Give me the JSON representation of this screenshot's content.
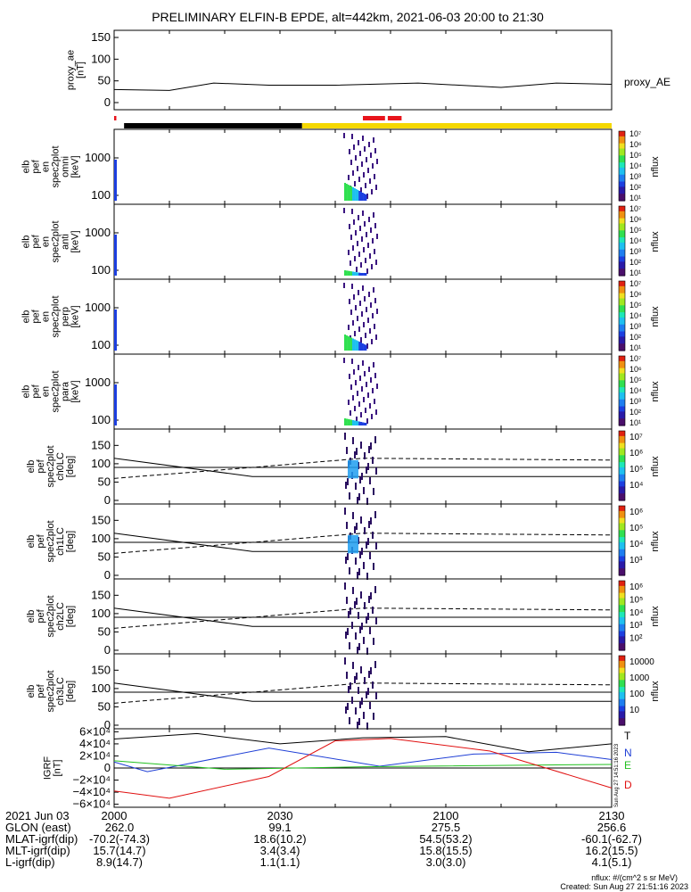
{
  "title": "PRELIMINARY ELFIN-B EPDE, alt=442km, 2021-06-03 20:00 to 21:30",
  "colors": {
    "accent_red": "#e8141c",
    "accent_yellow": "#f5d800",
    "line_black": "#000000",
    "series_blue": "#1f3fd6",
    "series_green": "#22c020",
    "series_red": "#e01010"
  },
  "chart_data": [
    {
      "type": "line",
      "panel": "proxy_ae",
      "ylabel": "proxy_ae\n[nT]",
      "yticks": [
        "150",
        "100",
        "50",
        "0"
      ],
      "ylim": [
        0,
        160
      ],
      "series": [
        {
          "name": "proxy_AE",
          "x": [
            0,
            10,
            18,
            28,
            40,
            55,
            70,
            80,
            90
          ],
          "y": [
            30,
            28,
            45,
            40,
            40,
            45,
            35,
            45,
            42
          ]
        }
      ]
    },
    {
      "type": "bar",
      "panel": "status-bar",
      "segments": [
        {
          "color": "red",
          "from": 0,
          "to": 0.4
        },
        {
          "color": "black",
          "from": 1.8,
          "to": 34
        },
        {
          "color": "yellow",
          "from": 34,
          "to": 90
        },
        {
          "color": "red",
          "from": 45,
          "to": 49
        },
        {
          "color": "red",
          "from": 49.5,
          "to": 52
        }
      ]
    },
    {
      "type": "heatmap",
      "panel": "omni",
      "ylabel": "elb\npef\nen\nspec2plot\nomni\n[keV]",
      "yticks": [
        "1000",
        "100"
      ],
      "colorbar_ticks": [
        "10⁷",
        "10⁶",
        "10⁵",
        "10⁴",
        "10³",
        "10²",
        "10¹"
      ],
      "colorbar_label": "nflux"
    },
    {
      "type": "heatmap",
      "panel": "anti",
      "ylabel": "elb\npef\nen\nspec2plot\nanti\n[keV]",
      "yticks": [
        "1000",
        "100"
      ],
      "colorbar_ticks": [
        "10⁷",
        "10⁶",
        "10⁵",
        "10⁴",
        "10³",
        "10²",
        "10¹"
      ],
      "colorbar_label": "nflux"
    },
    {
      "type": "heatmap",
      "panel": "perp",
      "ylabel": "elb\npef\nen\nspec2plot\nperp\n[keV]",
      "yticks": [
        "1000",
        "100"
      ],
      "colorbar_ticks": [
        "10⁷",
        "10⁶",
        "10⁵",
        "10⁴",
        "10³",
        "10²",
        "10¹"
      ],
      "colorbar_label": "nflux"
    },
    {
      "type": "heatmap",
      "panel": "para",
      "ylabel": "elb\npef\nen\nspec2plot\npara\n[keV]",
      "yticks": [
        "1000",
        "100"
      ],
      "colorbar_ticks": [
        "10⁷",
        "10⁶",
        "10⁵",
        "10⁴",
        "10³",
        "10²",
        "10¹"
      ],
      "colorbar_label": "nflux"
    },
    {
      "type": "heatmap",
      "panel": "ch0LC",
      "ylabel": "elb\npef\nspec2plot\nch0LC\n[deg]",
      "yticks": [
        "150",
        "100",
        "50",
        "0"
      ],
      "ylim": [
        0,
        180
      ],
      "colorbar_ticks": [
        "10⁷",
        "10⁶",
        "10⁵",
        "10⁴"
      ],
      "colorbar_label": "nflux"
    },
    {
      "type": "heatmap",
      "panel": "ch1LC",
      "ylabel": "elb\npef\nspec2plot\nch1LC\n[deg]",
      "yticks": [
        "150",
        "100",
        "50",
        "0"
      ],
      "ylim": [
        0,
        180
      ],
      "colorbar_ticks": [
        "10⁶",
        "10⁵",
        "10⁴",
        "10³"
      ],
      "colorbar_label": "nflux"
    },
    {
      "type": "heatmap",
      "panel": "ch2LC",
      "ylabel": "elb\npef\nspec2plot\nch2LC\n[deg]",
      "yticks": [
        "150",
        "100",
        "50",
        "0"
      ],
      "ylim": [
        0,
        180
      ],
      "colorbar_ticks": [
        "10⁶",
        "10⁵",
        "10⁴",
        "10³",
        "10²"
      ],
      "colorbar_label": "nflux"
    },
    {
      "type": "heatmap",
      "panel": "ch3LC",
      "ylabel": "elb\npef\nspec2plot\nch3LC\n[deg]",
      "yticks": [
        "150",
        "100",
        "50",
        "0"
      ],
      "ylim": [
        0,
        180
      ],
      "colorbar_ticks": [
        "10000",
        "1000",
        "100",
        "10"
      ],
      "colorbar_label": "nflux"
    },
    {
      "type": "line",
      "panel": "igrf",
      "ylabel": "IGRF\n[nT]",
      "yticks": [
        "6×10⁴",
        "4×10⁴",
        "2×10⁴",
        "0",
        "−2×10⁴",
        "−4×10⁴",
        "−6×10⁴"
      ],
      "ylim": [
        -65000,
        65000
      ],
      "series": [
        {
          "name": "T",
          "x": [
            0,
            15,
            30,
            45,
            60,
            75,
            90
          ],
          "y": [
            48000,
            57000,
            40000,
            50000,
            52000,
            27000,
            40000
          ]
        },
        {
          "name": "N",
          "x": [
            0,
            6,
            28,
            48,
            65,
            80,
            90
          ],
          "y": [
            10000,
            -6000,
            33000,
            3000,
            23000,
            26000,
            14000
          ]
        },
        {
          "name": "E",
          "x": [
            0,
            20,
            45,
            90
          ],
          "y": [
            12000,
            -2000,
            2000,
            6000
          ]
        },
        {
          "name": "D",
          "x": [
            0,
            10,
            28,
            40,
            50,
            68,
            90
          ],
          "y": [
            -38000,
            -50000,
            -14000,
            45000,
            49000,
            28000,
            -33000
          ]
        }
      ]
    }
  ],
  "footer": {
    "date": "2021 Jun 03",
    "times": [
      "2000",
      "2030",
      "2100",
      "2130"
    ],
    "rows": [
      {
        "label": "GLON (east)",
        "values": [
          "262.0",
          "99.1",
          "275.5",
          "256.6"
        ]
      },
      {
        "label": "MLAT-igrf(dip)",
        "values": [
          "-70.2(-74.3)",
          "18.6(10.2)",
          "54.5(53.2)",
          "-60.1(-62.7)"
        ]
      },
      {
        "label": "MLT-igrf(dip)",
        "values": [
          "15.7(14.7)",
          "3.4(3.4)",
          "15.8(15.5)",
          "16.2(15.5)"
        ]
      },
      {
        "label": "L-igrf(dip)",
        "values": [
          "8.9(14.7)",
          "1.1(1.1)",
          "3.0(3.0)",
          "4.1(5.1)"
        ]
      }
    ],
    "note_units": "nflux: #/(cm^2 s sr MeV)",
    "note_created": "Created: Sun Aug 27 21:51:16 2023",
    "side_stamp": "Sun Aug 27 14:51:16 2023"
  }
}
